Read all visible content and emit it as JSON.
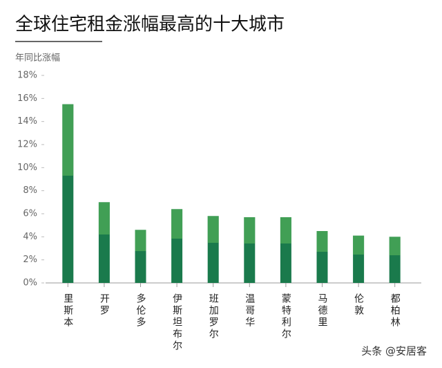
{
  "chart_data": {
    "type": "bar",
    "title": "全球住宅租金涨幅最高的十大城市",
    "y_label": "年同比涨幅",
    "watermark": "头条 @安居客",
    "categories": [
      "里斯本",
      "开罗",
      "多伦多",
      "伊斯坦布尔",
      "班加罗尔",
      "温哥华",
      "蒙特利尔",
      "马德里",
      "伦敦",
      "都柏林"
    ],
    "values": [
      15.5,
      7.0,
      4.6,
      6.4,
      5.8,
      5.7,
      5.7,
      4.5,
      4.1,
      4.0
    ],
    "color": "#1a7a4c",
    "ylim": [
      0,
      18
    ],
    "yticks": [
      {
        "value": 0,
        "label": "0%"
      },
      {
        "value": 2,
        "label": "2%"
      },
      {
        "value": 4,
        "label": "4%"
      },
      {
        "value": 6,
        "label": "6%"
      },
      {
        "value": 8,
        "label": "8%"
      },
      {
        "value": 10,
        "label": "10%"
      },
      {
        "value": 12,
        "label": "12%"
      },
      {
        "value": 14,
        "label": "14%"
      },
      {
        "value": 16,
        "label": "16%"
      },
      {
        "value": 18,
        "label": "18%"
      }
    ]
  }
}
